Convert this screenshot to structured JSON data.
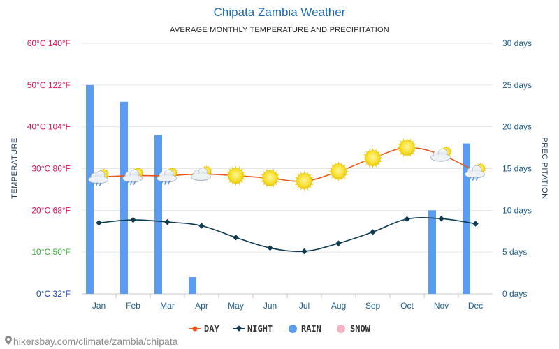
{
  "chart_data": {
    "type": "bar+line",
    "title": "Chipata Zambia Weather",
    "subtitle": "AVERAGE MONTHLY TEMPERATURE AND PRECIPITATION",
    "categories": [
      "Jan",
      "Feb",
      "Mar",
      "Apr",
      "May",
      "Jun",
      "Jul",
      "Aug",
      "Sep",
      "Oct",
      "Nov",
      "Dec"
    ],
    "left_axis": {
      "label": "TEMPERATURE",
      "range": [
        0,
        60
      ],
      "ticks": [
        {
          "value": 0,
          "label": "0°C 32°F",
          "color": "#1a3fb5"
        },
        {
          "value": 10,
          "label": "10°C 50°F",
          "color": "#3fae3f"
        },
        {
          "value": 20,
          "label": "20°C 68°F",
          "color": "#e0115f"
        },
        {
          "value": 30,
          "label": "30°C 86°F",
          "color": "#e0115f"
        },
        {
          "value": 40,
          "label": "40°C 104°F",
          "color": "#e0115f"
        },
        {
          "value": 50,
          "label": "50°C 122°F",
          "color": "#e0115f"
        },
        {
          "value": 60,
          "label": "60°C 140°F",
          "color": "#e0115f"
        }
      ]
    },
    "right_axis": {
      "label": "PRECIPITATION",
      "range": [
        0,
        30
      ],
      "ticks": [
        {
          "value": 0,
          "label": "0 days"
        },
        {
          "value": 5,
          "label": "5 days"
        },
        {
          "value": 10,
          "label": "10 days"
        },
        {
          "value": 15,
          "label": "15 days"
        },
        {
          "value": 20,
          "label": "20 days"
        },
        {
          "value": 25,
          "label": "25 days"
        },
        {
          "value": 30,
          "label": "30 days"
        }
      ]
    },
    "series": [
      {
        "name": "DAY",
        "type": "line",
        "color": "#e8541a",
        "values": [
          28,
          28.3,
          28.3,
          28.7,
          28.3,
          27.7,
          27,
          29.3,
          32.5,
          35,
          33.3,
          29.3
        ]
      },
      {
        "name": "NIGHT",
        "type": "line",
        "color": "#0d3b52",
        "values": [
          17,
          17.7,
          17.2,
          16.3,
          13.5,
          11,
          10.2,
          12.1,
          14.8,
          17.9,
          18,
          16.8
        ]
      },
      {
        "name": "RAIN",
        "type": "bar",
        "color": "#5b9cf0",
        "values": [
          25,
          23,
          19,
          2,
          0,
          0,
          0,
          0,
          0,
          0,
          10,
          18
        ]
      },
      {
        "name": "SNOW",
        "type": "bar",
        "color": "#f7b3c6",
        "values": [
          0,
          0,
          0,
          0,
          0,
          0,
          0,
          0,
          0,
          0,
          0,
          0
        ]
      }
    ],
    "weather_icons": [
      "partly-cloudy-rain",
      "partly-cloudy-rain",
      "partly-cloudy-rain",
      "partly-cloudy",
      "sunny",
      "sunny",
      "sunny",
      "sunny",
      "sunny",
      "sunny",
      "partly-cloudy",
      "partly-cloudy-rain"
    ],
    "grid": true,
    "legend_position": "bottom-center"
  },
  "footer": {
    "source_text": "hikersbay.com/climate/zambia/chipata"
  }
}
